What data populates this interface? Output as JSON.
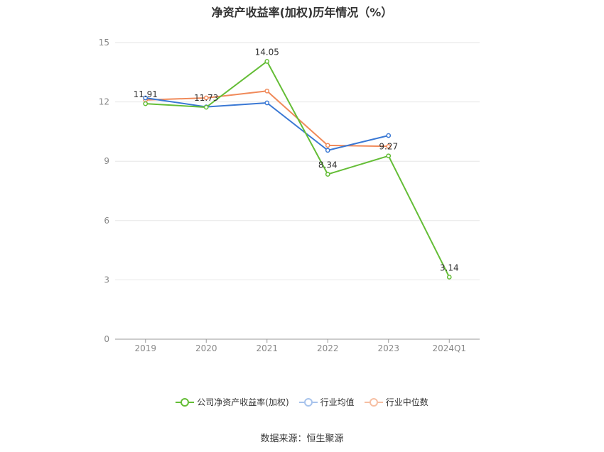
{
  "title": "净资产收益率(加权)历年情况（%）",
  "source": "数据来源：恒生聚源",
  "colors": {
    "company": "#64bd36",
    "industry_avg": "#3a78d4",
    "industry_median": "#f08a5a",
    "grid": "#e6e6e6",
    "axis": "#999999",
    "tick_text": "#888888"
  },
  "chart_data": {
    "type": "line",
    "title": "净资产收益率(加权)历年情况（%）",
    "xlabel": "",
    "ylabel": "",
    "categories": [
      "2019",
      "2020",
      "2021",
      "2022",
      "2023",
      "2024Q1"
    ],
    "ylim": [
      0,
      15
    ],
    "yticks": [
      0,
      3,
      6,
      9,
      12,
      15
    ],
    "grid": true,
    "legend_position": "bottom",
    "series": [
      {
        "name": "公司净资产收益率(加权)",
        "key": "company",
        "values": [
          11.91,
          11.73,
          14.05,
          8.34,
          9.27,
          3.14
        ],
        "labels": [
          "11.91",
          "11.73",
          "14.05",
          "8.34",
          "9.27",
          "3.14"
        ]
      },
      {
        "name": "行业均值",
        "key": "industry_avg",
        "values": [
          12.2,
          11.75,
          11.95,
          9.55,
          10.3,
          null
        ]
      },
      {
        "name": "行业中位数",
        "key": "industry_median",
        "values": [
          12.1,
          12.2,
          12.55,
          9.8,
          9.75,
          null
        ]
      }
    ]
  }
}
